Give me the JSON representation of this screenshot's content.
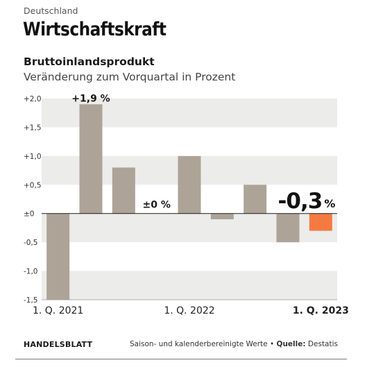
{
  "header": {
    "kicker": "Deutschland",
    "title": "Wirtschaftskraft"
  },
  "footer": {
    "brand": "HANDELSBLATT",
    "note": "Saison- und kalenderbereinigte Werte",
    "source_label": "Quelle:",
    "source": "Destatis"
  },
  "colors": {
    "bar": "#ada397",
    "highlight": "#f57a42",
    "band": "#ececea",
    "axis": "#1a1a1a"
  },
  "chart_data": {
    "type": "bar",
    "title": "Bruttoinlandsprodukt",
    "subtitle": "Veränderung zum Vorquartal in Prozent",
    "values": [
      -1.5,
      1.9,
      0.8,
      0.0,
      1.0,
      -0.1,
      0.5,
      -0.5,
      -0.3
    ],
    "highlight_index": 8,
    "ylim": [
      -1.5,
      2.0
    ],
    "yticks": [
      {
        "v": 2.0,
        "label": "+2,0"
      },
      {
        "v": 1.5,
        "label": "+1,5"
      },
      {
        "v": 1.0,
        "label": "+1,0"
      },
      {
        "v": 0.5,
        "label": "+0,5"
      },
      {
        "v": 0.0,
        "label": "±0"
      },
      {
        "v": -0.5,
        "label": "-0,5"
      },
      {
        "v": -1.0,
        "label": "-1,0"
      },
      {
        "v": -1.5,
        "label": "-1,5"
      }
    ],
    "xticks": [
      {
        "index": 0,
        "label": "1. Q. 2021",
        "bold": false
      },
      {
        "index": 4,
        "label": "1. Q. 2022",
        "bold": false
      },
      {
        "index": 8,
        "label": "1. Q. 2023",
        "bold": true
      }
    ],
    "annotations": [
      {
        "index": 1,
        "text": "+1,9 %"
      },
      {
        "index": 3,
        "text": "±0 %"
      }
    ],
    "highlight_label": {
      "index": 8,
      "value": "-0,3",
      "unit": "%"
    },
    "grid": "alternating bands"
  }
}
